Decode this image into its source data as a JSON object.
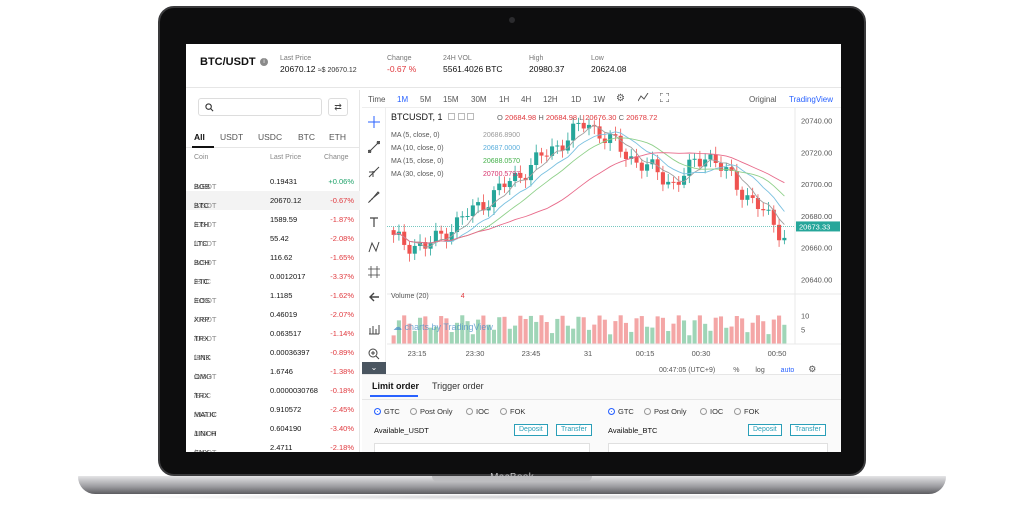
{
  "device": {
    "brand": "MacBook"
  },
  "ticker": {
    "pair": "BTC/USDT",
    "last_price_label": "Last Price",
    "last_price": "20670.12",
    "last_price_fiat": "≈$ 20670.12",
    "change_label": "Change",
    "change": "-0.67 %",
    "vol_label": "24H VOL",
    "vol": "5561.4026 BTC",
    "high_label": "High",
    "high": "20980.37",
    "low_label": "Low",
    "low": "20624.08"
  },
  "market": {
    "tabs": [
      "All",
      "USDT",
      "USDC",
      "BTC",
      "ETH"
    ],
    "columns": {
      "coin": "Coin",
      "price": "Last Price",
      "change": "Change"
    },
    "rows": [
      {
        "base": "BGB",
        "quote": "/USDT",
        "price": "0.19431",
        "change": "+0.06%"
      },
      {
        "base": "BTC",
        "quote": "/USDT",
        "price": "20670.12",
        "change": "-0.67%"
      },
      {
        "base": "ETH",
        "quote": "/USDT",
        "price": "1589.59",
        "change": "-1.87%"
      },
      {
        "base": "LTC",
        "quote": "/USDT",
        "price": "55.42",
        "change": "-2.08%"
      },
      {
        "base": "BCH",
        "quote": "/USDT",
        "price": "116.62",
        "change": "-1.65%"
      },
      {
        "base": "ETC",
        "quote": "/BTC",
        "price": "0.0012017",
        "change": "-3.37%"
      },
      {
        "base": "EOS",
        "quote": "/USDT",
        "price": "1.1185",
        "change": "-1.62%"
      },
      {
        "base": "XRP",
        "quote": "/USDT",
        "price": "0.46019",
        "change": "-2.07%"
      },
      {
        "base": "TRX",
        "quote": "/USDT",
        "price": "0.063517",
        "change": "-1.14%"
      },
      {
        "base": "LINK",
        "quote": "/BTC",
        "price": "0.00036397",
        "change": "-0.89%"
      },
      {
        "base": "OMG",
        "quote": "/USDT",
        "price": "1.6746",
        "change": "-1.38%"
      },
      {
        "base": "TRX",
        "quote": "/BTC",
        "price": "0.0000030768",
        "change": "-0.18%"
      },
      {
        "base": "MATIC",
        "quote": "/USDT",
        "price": "0.910572",
        "change": "-2.45%"
      },
      {
        "base": "1INCH",
        "quote": "/USDT",
        "price": "0.604190",
        "change": "-3.40%"
      },
      {
        "base": "SNX",
        "quote": "/USDT",
        "price": "2.4711",
        "change": "-2.18%"
      }
    ]
  },
  "chart_toolbar": {
    "time": "Time",
    "intervals": [
      "1M",
      "5M",
      "15M",
      "30M",
      "1H",
      "4H",
      "12H",
      "1D",
      "1W"
    ],
    "original": "Original",
    "tradingview": "TradingView"
  },
  "chart_legend": {
    "symbol": "BTCUSDT, 1",
    "o": "20684.98",
    "h": "20684.98",
    "l": "20676.30",
    "c": "20678.72",
    "ma5_label": "MA (5, close, 0)",
    "ma5": "20686.8900",
    "ma10_label": "MA (10, close, 0)",
    "ma10": "20687.0000",
    "ma15_label": "MA (15, close, 0)",
    "ma15": "20688.0570",
    "ma30_label": "MA (30, close, 0)",
    "ma30": "20700.5797",
    "volume_label": "Volume (20)",
    "volume_value": "4",
    "watermark": "charts by TradingView"
  },
  "chart_footer": {
    "clock": "00:47:05 (UTC+9)",
    "pct": "%",
    "log": "log",
    "auto": "auto"
  },
  "chart_data": {
    "type": "candlestick",
    "y_ticks": [
      20740,
      20720,
      20700,
      20680,
      20660,
      20640
    ],
    "last_price_tag": "20673.33",
    "x_ticks": [
      "23:15",
      "23:30",
      "23:45",
      "31",
      "00:15",
      "00:30",
      "00:50"
    ],
    "vol_ticks": [
      10,
      5
    ],
    "colors": {
      "up": "#26a69a",
      "down": "#ef5350",
      "ma5": "#a0a0a0",
      "ma10": "#7bc1e0",
      "ma15": "#8fd08a",
      "ma30": "#e86a8a"
    }
  },
  "order": {
    "tabs": [
      "Limit order",
      "Trigger order"
    ],
    "tif": [
      "GTC",
      "Post Only",
      "IOC",
      "FOK"
    ],
    "buy_available": "Available_USDT",
    "sell_available": "Available_BTC",
    "deposit": "Deposit",
    "transfer": "Transfer"
  }
}
